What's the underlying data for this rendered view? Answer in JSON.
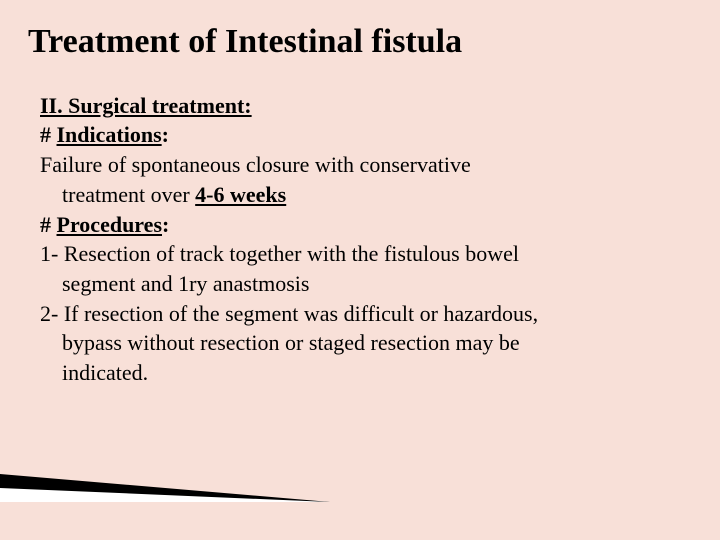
{
  "slide": {
    "title": "Treatment of Intestinal fistula",
    "section_header": "II. Surgical treatment:",
    "indications": {
      "label_prefix": "# ",
      "label_text": "Indications",
      "label_suffix": ":",
      "text_before": "Failure of spontaneous closure with conservative",
      "text_indent": "treatment over ",
      "timeframe": "4-6 weeks"
    },
    "procedures": {
      "label_prefix": "# ",
      "label_text": "Procedures",
      "label_suffix": ":",
      "item1_line1": "1- Resection of track together with the fistulous bowel",
      "item1_line2": "segment and 1ry anastmosis",
      "item2_line1": "2- If resection of the segment was difficult or hazardous,",
      "item2_line2": "bypass without resection or staged resection may be",
      "item2_line3": "indicated."
    },
    "colors": {
      "background": "#f8e0d8",
      "text": "#000000",
      "decoration_dark": "#000000",
      "decoration_light": "#ffffff"
    },
    "typography": {
      "title_fontsize": 34,
      "body_fontsize": 22,
      "font_family": "Times New Roman"
    }
  }
}
